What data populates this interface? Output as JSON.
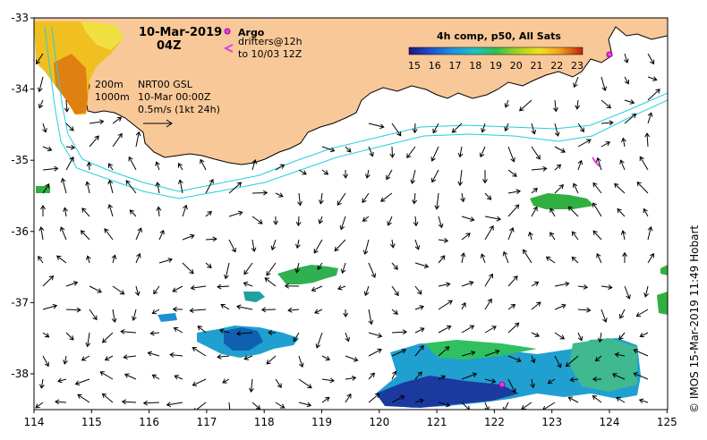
{
  "title": {
    "date": "10-Mar-2019",
    "time": "04Z"
  },
  "legend": {
    "argo_label": "Argo",
    "drifters_line1": "drifters@12h",
    "drifters_line2": "to 10/03 12Z",
    "colorbar_title": "4h comp, p50, All Sats",
    "colorbar_ticks": [
      "15",
      "16",
      "17",
      "18",
      "19",
      "20",
      "21",
      "22",
      "23"
    ],
    "colors": {
      "land": "#f8c898",
      "argo": "#e040e0",
      "drifter": "#e040e0",
      "isobath": "#20d0e0"
    }
  },
  "info": {
    "isobath_1": "200m",
    "isobath_2": "1000m",
    "product": "NRT00 GSL",
    "valid": "10-Mar 00:00Z",
    "scale": "0.5m/s (1kt 24h)"
  },
  "axes": {
    "x_ticks": [
      "114",
      "115",
      "116",
      "117",
      "118",
      "119",
      "120",
      "121",
      "122",
      "123",
      "124",
      "125"
    ],
    "y_ticks": [
      "-33",
      "-34",
      "-35",
      "-36",
      "-37",
      "-38"
    ]
  },
  "credit": "© IMOS 15-Mar-2019 11:49 Hobart"
}
